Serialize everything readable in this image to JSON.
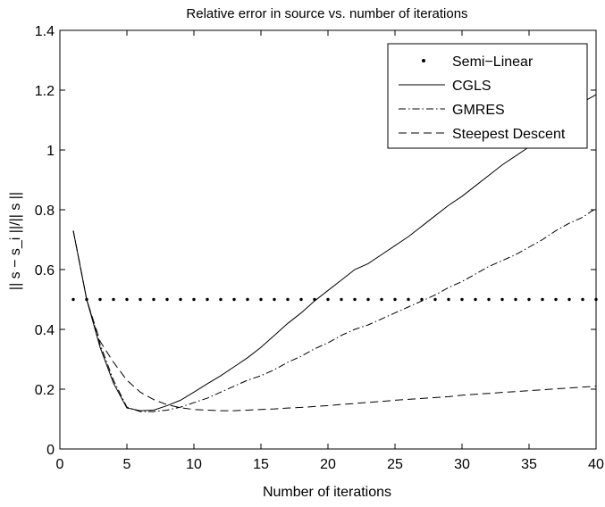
{
  "chart_data": {
    "type": "line",
    "title": "Relative error in source vs. number of iterations",
    "xlabel": "Number of iterations",
    "ylabel": "|| s − s_i ||/|| s ||",
    "ylabel_main": "|| s − s",
    "ylabel_sub": "i",
    "ylabel_tail": " ||/|| s ||",
    "xlim": [
      0,
      40
    ],
    "ylim": [
      0,
      1.4
    ],
    "xticks": [
      0,
      5,
      10,
      15,
      20,
      25,
      30,
      35,
      40
    ],
    "yticks": [
      0,
      0.2,
      0.4,
      0.6,
      0.8,
      1,
      1.2,
      1.4
    ],
    "xtick_labels": [
      "0",
      "5",
      "10",
      "15",
      "20",
      "25",
      "30",
      "35",
      "40"
    ],
    "ytick_labels": [
      "0",
      "0.2",
      "0.4",
      "0.6",
      "0.8",
      "1",
      "1.2",
      "1.4"
    ],
    "grid": false,
    "legend_position": "top-right",
    "x": [
      1,
      2,
      3,
      4,
      5,
      6,
      7,
      8,
      9,
      10,
      11,
      12,
      13,
      14,
      15,
      16,
      17,
      18,
      19,
      20,
      21,
      22,
      23,
      24,
      25,
      26,
      27,
      28,
      29,
      30,
      31,
      32,
      33,
      34,
      35,
      36,
      37,
      38,
      39,
      40
    ],
    "series": [
      {
        "name": "Semi−Linear",
        "style": "dots",
        "values": [
          0.5,
          0.5,
          0.5,
          0.5,
          0.5,
          0.5,
          0.5,
          0.5,
          0.5,
          0.5,
          0.5,
          0.5,
          0.5,
          0.5,
          0.5,
          0.5,
          0.5,
          0.5,
          0.5,
          0.5,
          0.5,
          0.5,
          0.5,
          0.5,
          0.5,
          0.5,
          0.5,
          0.5,
          0.5,
          0.5,
          0.5,
          0.5,
          0.5,
          0.5,
          0.5,
          0.5,
          0.5,
          0.5,
          0.5,
          0.5
        ]
      },
      {
        "name": "CGLS",
        "style": "solid",
        "values": [
          0.73,
          0.5,
          0.34,
          0.22,
          0.137,
          0.128,
          0.13,
          0.145,
          0.163,
          0.19,
          0.218,
          0.245,
          0.275,
          0.305,
          0.34,
          0.38,
          0.42,
          0.455,
          0.495,
          0.53,
          0.565,
          0.6,
          0.62,
          0.65,
          0.68,
          0.71,
          0.745,
          0.78,
          0.815,
          0.845,
          0.88,
          0.915,
          0.95,
          0.98,
          1.01,
          1.05,
          1.09,
          1.13,
          1.16,
          1.185
        ]
      },
      {
        "name": "GMRES",
        "style": "dashdot",
        "values": [
          0.73,
          0.5,
          0.35,
          0.23,
          0.14,
          0.125,
          0.125,
          0.13,
          0.14,
          0.155,
          0.17,
          0.19,
          0.21,
          0.23,
          0.245,
          0.265,
          0.29,
          0.31,
          0.335,
          0.355,
          0.38,
          0.4,
          0.415,
          0.435,
          0.455,
          0.475,
          0.495,
          0.515,
          0.54,
          0.56,
          0.585,
          0.61,
          0.63,
          0.65,
          0.675,
          0.7,
          0.73,
          0.755,
          0.775,
          0.805
        ]
      },
      {
        "name": "Steepest Descent",
        "style": "dashed",
        "values": [
          0.73,
          0.5,
          0.36,
          0.29,
          0.23,
          0.19,
          0.165,
          0.148,
          0.138,
          0.132,
          0.13,
          0.128,
          0.128,
          0.13,
          0.132,
          0.134,
          0.137,
          0.139,
          0.142,
          0.145,
          0.149,
          0.152,
          0.156,
          0.159,
          0.163,
          0.166,
          0.169,
          0.172,
          0.175,
          0.18,
          0.183,
          0.186,
          0.189,
          0.192,
          0.195,
          0.198,
          0.201,
          0.204,
          0.207,
          0.21
        ]
      }
    ]
  }
}
